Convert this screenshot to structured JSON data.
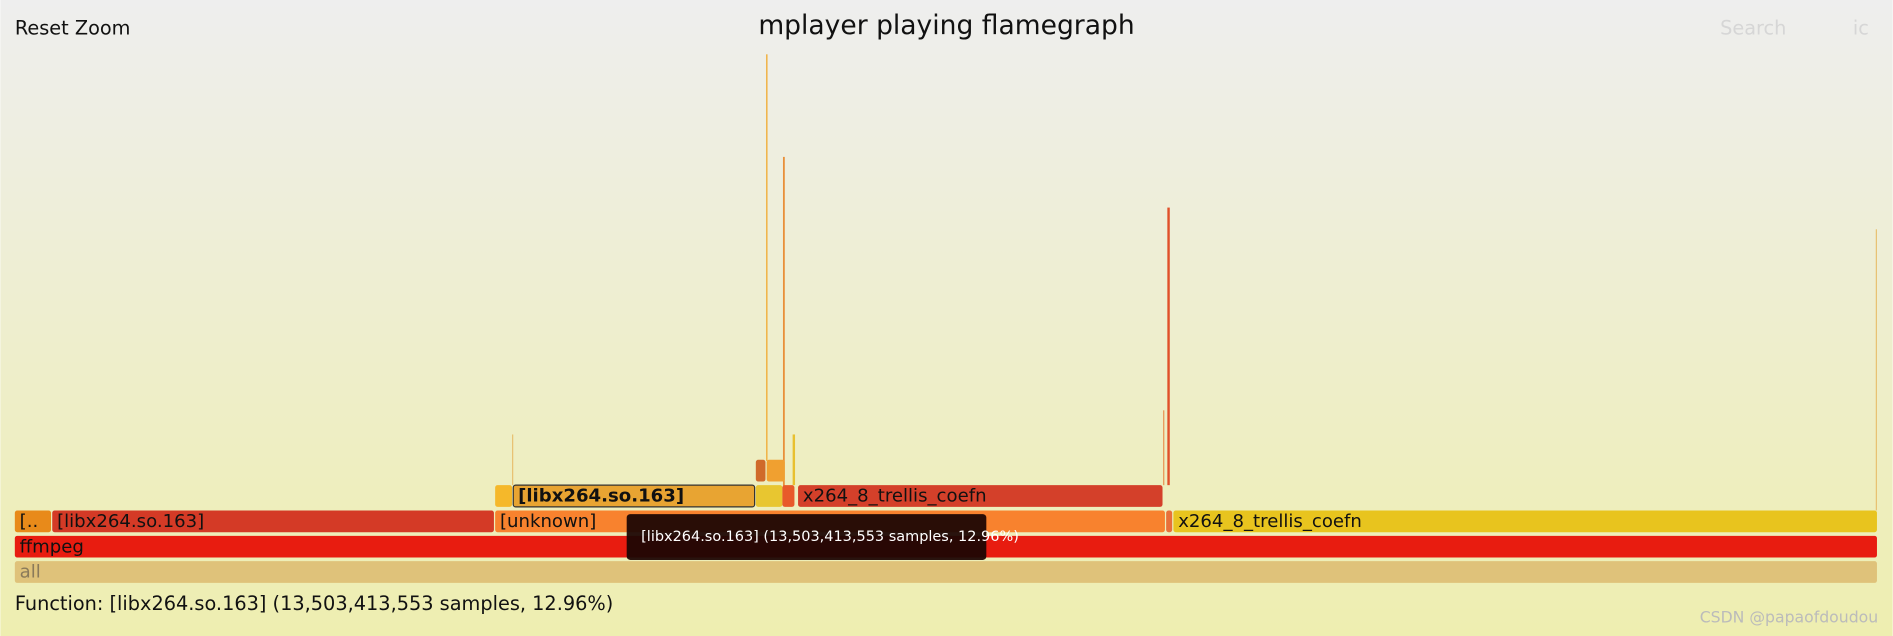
{
  "header": {
    "reset_zoom": "Reset Zoom",
    "title": "mplayer playing flamegraph",
    "search": "Search",
    "ic": "ic"
  },
  "frames": [
    {
      "label": "all"
    },
    {
      "label": "ffmpeg"
    },
    {
      "label": "[.."
    },
    {
      "label": "[libx264.so.163]"
    },
    {
      "label": "[unknown]"
    },
    {
      "label": "x264_8_trellis_coefn"
    },
    {
      "label": "[libx264.so.163]"
    },
    {
      "label": "x264_8_trellis_coefn"
    }
  ],
  "tooltip": "[libx264.so.163] (13,503,413,553 samples, 12.96%)",
  "status": "Function: [libx264.so.163] (13,503,413,553 samples, 12.96%)",
  "watermark": "CSDN @papaofdoudou"
}
